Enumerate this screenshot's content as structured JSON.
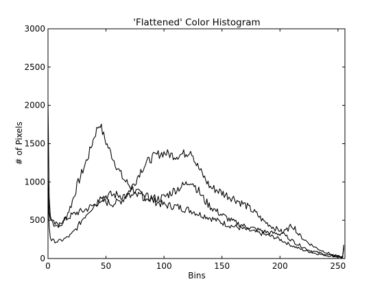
{
  "chart_data": {
    "type": "line",
    "title": "'Flattened' Color Histogram",
    "xlabel": "Bins",
    "ylabel": "# of Pixels",
    "xlim": [
      0,
      256
    ],
    "ylim": [
      0,
      3000
    ],
    "xticks": [
      0,
      50,
      100,
      150,
      200,
      250
    ],
    "yticks": [
      0,
      500,
      1000,
      1500,
      2000,
      2500,
      3000
    ],
    "grid": false,
    "legend": "none",
    "series": [
      {
        "color": "#000000",
        "x": [
          0,
          1,
          2,
          3,
          5,
          8,
          10,
          13,
          16,
          20,
          25,
          30,
          35,
          40,
          43,
          45,
          47,
          50,
          55,
          60,
          65,
          70,
          75,
          80,
          85,
          90,
          95,
          100,
          105,
          110,
          115,
          120,
          125,
          130,
          135,
          140,
          145,
          150,
          155,
          160,
          165,
          170,
          175,
          180,
          185,
          190,
          195,
          200,
          205,
          210,
          215,
          220,
          225,
          230,
          235,
          240,
          245,
          250,
          254,
          255
        ],
        "y": [
          2050,
          800,
          560,
          500,
          450,
          430,
          440,
          480,
          560,
          700,
          950,
          1150,
          1350,
          1600,
          1720,
          1760,
          1650,
          1520,
          1350,
          1180,
          1040,
          960,
          880,
          830,
          800,
          760,
          730,
          700,
          690,
          680,
          660,
          640,
          620,
          580,
          560,
          530,
          500,
          470,
          440,
          420,
          400,
          380,
          360,
          340,
          320,
          300,
          280,
          250,
          210,
          170,
          140,
          110,
          90,
          70,
          55,
          40,
          30,
          20,
          10,
          180
        ]
      },
      {
        "color": "#000000",
        "x": [
          0,
          1,
          2,
          3,
          5,
          8,
          12,
          16,
          20,
          25,
          30,
          35,
          40,
          45,
          50,
          55,
          60,
          65,
          70,
          75,
          80,
          85,
          90,
          95,
          100,
          105,
          110,
          115,
          120,
          123,
          125,
          127,
          130,
          135,
          140,
          145,
          150,
          155,
          160,
          165,
          170,
          175,
          180,
          185,
          190,
          195,
          200,
          205,
          210,
          215,
          220,
          225,
          230,
          235,
          240,
          245,
          250,
          254,
          255
        ],
        "y": [
          1050,
          600,
          520,
          490,
          460,
          440,
          460,
          520,
          560,
          600,
          620,
          660,
          700,
          760,
          740,
          720,
          730,
          780,
          880,
          1000,
          1150,
          1250,
          1320,
          1360,
          1380,
          1360,
          1340,
          1360,
          1380,
          1420,
          1360,
          1260,
          1180,
          1050,
          930,
          900,
          860,
          820,
          790,
          740,
          700,
          640,
          580,
          500,
          450,
          400,
          370,
          300,
          240,
          190,
          150,
          110,
          90,
          70,
          50,
          40,
          30,
          20,
          140
        ]
      },
      {
        "color": "#000000",
        "x": [
          0,
          1,
          2,
          3,
          5,
          8,
          12,
          16,
          20,
          25,
          30,
          35,
          40,
          45,
          50,
          55,
          60,
          65,
          70,
          75,
          80,
          85,
          90,
          95,
          100,
          105,
          110,
          115,
          120,
          123,
          125,
          128,
          130,
          135,
          140,
          145,
          150,
          155,
          160,
          165,
          170,
          175,
          180,
          185,
          190,
          195,
          200,
          205,
          208,
          210,
          213,
          215,
          220,
          225,
          230,
          235,
          240,
          245,
          250,
          254,
          255
        ],
        "y": [
          900,
          420,
          270,
          240,
          230,
          220,
          240,
          270,
          310,
          400,
          520,
          620,
          700,
          780,
          820,
          830,
          830,
          820,
          810,
          820,
          820,
          800,
          790,
          780,
          800,
          850,
          900,
          940,
          980,
          1020,
          990,
          920,
          880,
          760,
          680,
          620,
          570,
          520,
          480,
          450,
          420,
          400,
          380,
          360,
          340,
          330,
          320,
          360,
          400,
          430,
          400,
          330,
          260,
          200,
          150,
          110,
          80,
          50,
          30,
          20,
          150
        ]
      }
    ]
  }
}
